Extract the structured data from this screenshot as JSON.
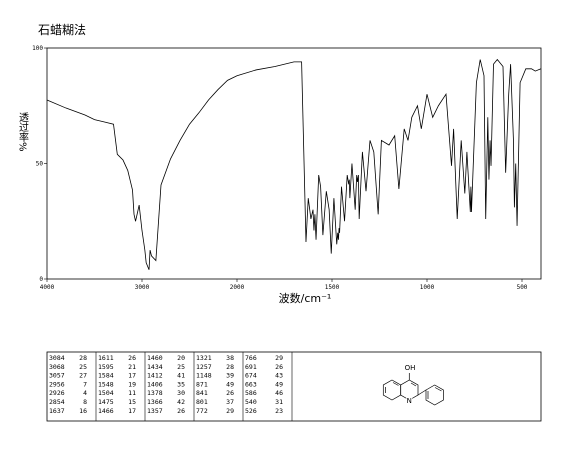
{
  "chart_data": {
    "type": "line",
    "title": "石蜡糊法",
    "xlabel": "波数/cm⁻¹",
    "ylabel": "透过率%",
    "xlim": [
      4000,
      400
    ],
    "x_break": 2000,
    "x_break_ratio": 2,
    "xticks": [
      4000,
      3000,
      2000,
      1500,
      1000,
      500
    ],
    "ylim": [
      0,
      100
    ],
    "yticks": [
      0,
      50,
      100
    ],
    "x": [
      4000,
      3800,
      3600,
      3500,
      3400,
      3300,
      3260,
      3200,
      3150,
      3100,
      3084,
      3068,
      3057,
      3030,
      3000,
      2970,
      2956,
      2926,
      2915,
      2900,
      2854,
      2800,
      2700,
      2600,
      2500,
      2400,
      2300,
      2200,
      2100,
      2000,
      1900,
      1800,
      1700,
      1660,
      1637,
      1625,
      1611,
      1600,
      1595,
      1590,
      1584,
      1570,
      1560,
      1548,
      1530,
      1515,
      1504,
      1490,
      1475,
      1470,
      1466,
      1463,
      1460,
      1450,
      1434,
      1420,
      1412,
      1409,
      1406,
      1395,
      1378,
      1370,
      1366,
      1361,
      1357,
      1340,
      1321,
      1300,
      1280,
      1257,
      1240,
      1200,
      1170,
      1148,
      1120,
      1100,
      1080,
      1050,
      1030,
      1000,
      970,
      940,
      900,
      871,
      860,
      841,
      820,
      801,
      790,
      772,
      769,
      766,
      740,
      720,
      700,
      691,
      680,
      674,
      668,
      663,
      650,
      630,
      600,
      586,
      570,
      560,
      545,
      540,
      533,
      526,
      510,
      480,
      450,
      430,
      400
    ],
    "series": [
      {
        "color": "#000000",
        "values": [
          77.5,
          74,
          71,
          69,
          68,
          67,
          54,
          51.5,
          47,
          38.5,
          28,
          25,
          27,
          32,
          21,
          12.5,
          7,
          4,
          12.5,
          10,
          8,
          40.7,
          52,
          60,
          67,
          72,
          77.5,
          82,
          86,
          88,
          90.5,
          92,
          94,
          94,
          16,
          35,
          26,
          30,
          21,
          28,
          17,
          45,
          40,
          19,
          38,
          30,
          11,
          35,
          15,
          20,
          17,
          22,
          20,
          40,
          25,
          45,
          41,
          43,
          35,
          50,
          30,
          45,
          42,
          45,
          26,
          55,
          38,
          60,
          55,
          28,
          60,
          58,
          62,
          39,
          65,
          60,
          70,
          75,
          65,
          80,
          70,
          75,
          80,
          49,
          65,
          26,
          60,
          37,
          55,
          29,
          40,
          29,
          85,
          95,
          88,
          26,
          70,
          43,
          60,
          49,
          93,
          95,
          92,
          46,
          80,
          93,
          60,
          31,
          50,
          23,
          85,
          91,
          91,
          90,
          91
        ]
      }
    ]
  },
  "peak_table": {
    "rows": [
      [
        3084,
        28,
        1611,
        26,
        1460,
        20,
        1321,
        38,
        766,
        29
      ],
      [
        3068,
        25,
        1595,
        21,
        1434,
        25,
        1257,
        28,
        691,
        26
      ],
      [
        3057,
        27,
        1584,
        17,
        1412,
        41,
        1148,
        39,
        674,
        43
      ],
      [
        2956,
        7,
        1548,
        19,
        1406,
        35,
        871,
        49,
        663,
        49
      ],
      [
        2926,
        4,
        1504,
        11,
        1378,
        30,
        841,
        26,
        586,
        46
      ],
      [
        2854,
        8,
        1475,
        15,
        1366,
        42,
        801,
        37,
        540,
        31
      ],
      [
        1637,
        16,
        1466,
        17,
        1357,
        26,
        772,
        29,
        526,
        23
      ]
    ]
  },
  "structure": {
    "labels": [
      "OH",
      "N"
    ]
  }
}
